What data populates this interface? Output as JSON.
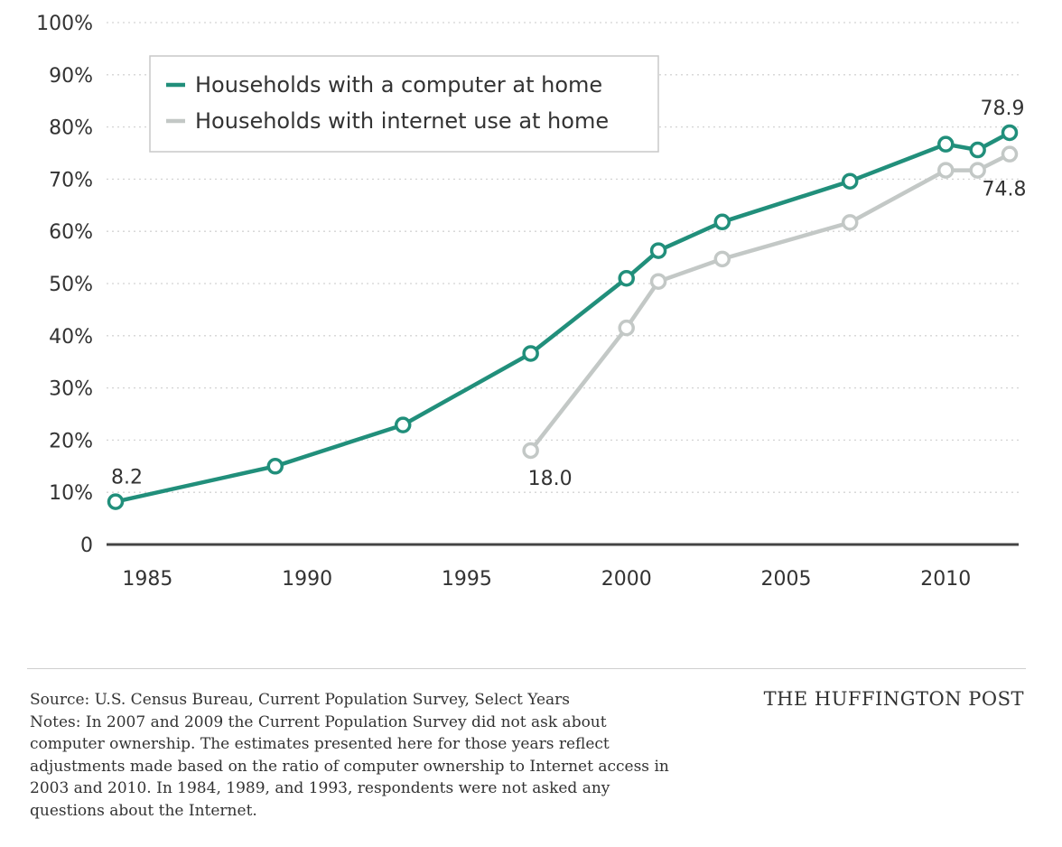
{
  "chart_data": {
    "type": "line",
    "title": "",
    "xlabel": "",
    "ylabel": "",
    "xlim": [
      1984,
      2012
    ],
    "ylim": [
      0,
      100
    ],
    "x_ticks": [
      {
        "value": 1985,
        "label": "1985"
      },
      {
        "value": 1990,
        "label": "1990"
      },
      {
        "value": 1995,
        "label": "1995"
      },
      {
        "value": 2000,
        "label": "2000"
      },
      {
        "value": 2005,
        "label": "2005"
      },
      {
        "value": 2010,
        "label": "2010"
      }
    ],
    "y_ticks": [
      {
        "value": 0,
        "label": "0"
      },
      {
        "value": 10,
        "label": "10%"
      },
      {
        "value": 20,
        "label": "20%"
      },
      {
        "value": 30,
        "label": "30%"
      },
      {
        "value": 40,
        "label": "40%"
      },
      {
        "value": 50,
        "label": "50%"
      },
      {
        "value": 60,
        "label": "60%"
      },
      {
        "value": 70,
        "label": "70%"
      },
      {
        "value": 80,
        "label": "80%"
      },
      {
        "value": 90,
        "label": "90%"
      },
      {
        "value": 100,
        "label": "100%"
      }
    ],
    "grid": "horizontal dotted",
    "legend": {
      "position": "top-left",
      "boxed": true
    },
    "series": [
      {
        "name": "Households with a computer at home",
        "color": "#218f7b",
        "x": [
          1984,
          1989,
          1993,
          1997,
          2000,
          2001,
          2003,
          2007,
          2010,
          2011,
          2012
        ],
        "y": [
          8.2,
          15.0,
          22.9,
          36.6,
          51.0,
          56.3,
          61.8,
          69.6,
          76.7,
          75.6,
          78.9
        ]
      },
      {
        "name": "Households with internet use at home",
        "color": "#c3c8c6",
        "x": [
          1997,
          2000,
          2001,
          2003,
          2007,
          2010,
          2011,
          2012
        ],
        "y": [
          18.0,
          41.5,
          50.4,
          54.7,
          61.7,
          71.7,
          71.7,
          74.8
        ]
      }
    ],
    "annotations": [
      {
        "series": 0,
        "x": 1984,
        "y": 8.2,
        "text": "8.2",
        "position": "above"
      },
      {
        "series": 0,
        "x": 2012,
        "y": 78.9,
        "text": "78.9",
        "position": "above"
      },
      {
        "series": 1,
        "x": 1997,
        "y": 18.0,
        "text": "18.0",
        "position": "below-right"
      },
      {
        "series": 1,
        "x": 2012,
        "y": 74.8,
        "text": "74.8",
        "position": "below"
      }
    ]
  },
  "footer": {
    "source": "Source: U.S. Census Bureau, Current Population Survey, Select Years",
    "notes": "Notes: In 2007 and 2009 the Current Population Survey did not ask about computer ownership. The estimates presented here for those years reflect adjustments made based on the ratio of computer ownership to Internet access in 2003 and 2010. In 1984, 1989, and 1993, respondents were not asked any questions about the Internet.",
    "brand": "THE HUFFINGTON POST"
  }
}
